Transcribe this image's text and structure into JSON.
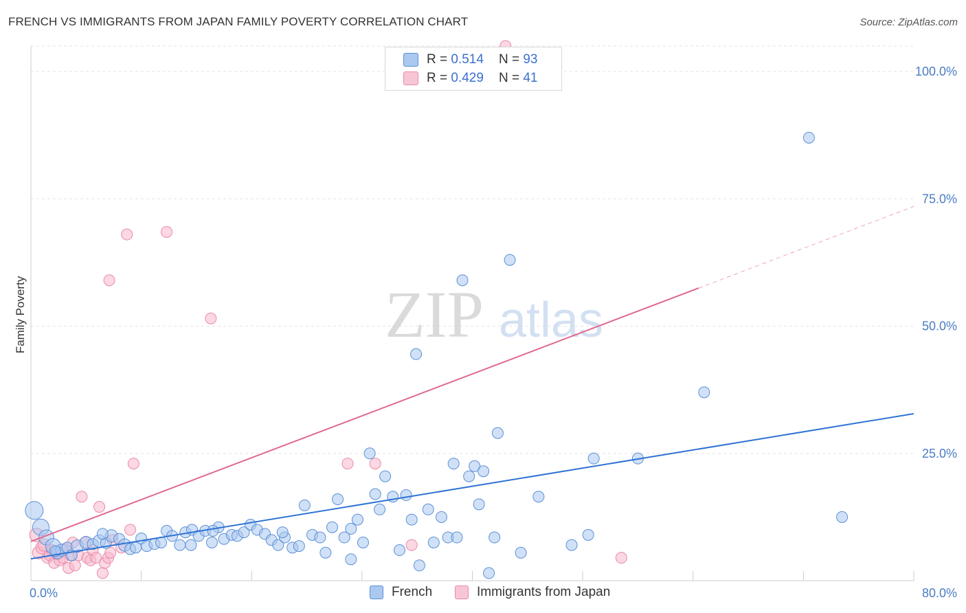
{
  "header": {
    "title": "FRENCH VS IMMIGRANTS FROM JAPAN FAMILY POVERTY CORRELATION CHART",
    "source": "Source: ZipAtlas.com"
  },
  "legend": {
    "rows": [
      {
        "r_label": "R =",
        "r_value": "0.514",
        "n_label": "N =",
        "n_value": "93"
      },
      {
        "r_label": "R =",
        "r_value": "0.429",
        "n_label": "N =",
        "n_value": "41"
      }
    ]
  },
  "bottom_legend": {
    "items": [
      {
        "label": "French"
      },
      {
        "label": "Immigrants from Japan"
      }
    ]
  },
  "colors": {
    "french_fill": "#aac8f0",
    "french_stroke": "#5b8fd6",
    "french_line": "#2f73d4",
    "japan_fill": "#f7b8cc",
    "japan_stroke": "#e88aa8",
    "japan_line": "#e0688f",
    "tick_text": "#4a7cc4",
    "grid": "#e3e3e3"
  },
  "chart_data": {
    "type": "scatter",
    "title": "FRENCH VS IMMIGRANTS FROM JAPAN FAMILY POVERTY CORRELATION CHART",
    "xlabel": "",
    "ylabel": "Family Poverty",
    "xlim": [
      0,
      80
    ],
    "ylim": [
      0,
      105
    ],
    "x_tick_labels": [
      "0.0%",
      "80.0%"
    ],
    "y_ticks": [
      25,
      50,
      75,
      100
    ],
    "y_tick_labels": [
      "25.0%",
      "50.0%",
      "75.0%",
      "100.0%"
    ],
    "watermark": {
      "zip": "ZIP",
      "atlas": "atlas"
    },
    "series": [
      {
        "name": "French",
        "r": 0.514,
        "n": 93,
        "trend": {
          "x0": 0,
          "y0": 4.3,
          "x1": 80,
          "y1": 32.8,
          "dash_from": null
        },
        "points": [
          [
            0.3,
            13.8,
            13
          ],
          [
            0.9,
            10.5,
            12
          ],
          [
            1.4,
            8.5,
            11
          ],
          [
            2.0,
            6.8,
            11
          ],
          [
            2.4,
            5.5,
            9
          ],
          [
            2.8,
            6.0,
            9
          ],
          [
            3.3,
            6.5,
            8
          ],
          [
            3.7,
            5.0,
            8
          ],
          [
            4.2,
            6.8,
            9
          ],
          [
            5.0,
            7.5,
            9
          ],
          [
            5.6,
            7.2,
            8
          ],
          [
            6.2,
            7.8,
            9
          ],
          [
            6.8,
            7.4,
            8
          ],
          [
            7.3,
            8.8,
            9
          ],
          [
            8.0,
            8.2,
            8
          ],
          [
            8.5,
            7.0,
            9
          ],
          [
            9.0,
            6.2,
            8
          ],
          [
            9.5,
            6.5,
            8
          ],
          [
            10.0,
            8.3,
            8
          ],
          [
            10.5,
            6.8,
            8
          ],
          [
            11.2,
            7.2,
            8
          ],
          [
            11.8,
            7.5,
            8
          ],
          [
            12.3,
            9.8,
            8
          ],
          [
            12.8,
            8.8,
            8
          ],
          [
            13.5,
            7.0,
            8
          ],
          [
            14.0,
            9.5,
            8
          ],
          [
            14.6,
            10.0,
            8
          ],
          [
            15.2,
            8.8,
            8
          ],
          [
            15.8,
            9.8,
            8
          ],
          [
            16.4,
            7.5,
            8
          ],
          [
            17.0,
            10.5,
            8
          ],
          [
            17.5,
            8.2,
            8
          ],
          [
            18.2,
            9.0,
            8
          ],
          [
            18.7,
            8.8,
            8
          ],
          [
            19.3,
            9.5,
            8
          ],
          [
            19.9,
            11.0,
            8
          ],
          [
            20.5,
            10.0,
            8
          ],
          [
            21.2,
            9.2,
            8
          ],
          [
            21.8,
            8.0,
            8
          ],
          [
            22.4,
            7.0,
            8
          ],
          [
            23.0,
            8.5,
            8
          ],
          [
            23.7,
            6.5,
            8
          ],
          [
            24.3,
            6.8,
            8
          ],
          [
            24.8,
            14.8,
            8
          ],
          [
            25.5,
            9.0,
            8
          ],
          [
            26.2,
            8.5,
            8
          ],
          [
            26.7,
            5.5,
            8
          ],
          [
            27.3,
            10.5,
            8
          ],
          [
            27.8,
            16.0,
            8
          ],
          [
            28.4,
            8.5,
            8
          ],
          [
            29.0,
            10.2,
            8
          ],
          [
            29.6,
            12.0,
            8
          ],
          [
            30.1,
            7.5,
            8
          ],
          [
            30.7,
            25.0,
            8
          ],
          [
            31.2,
            17.0,
            8
          ],
          [
            31.6,
            14.0,
            8
          ],
          [
            32.1,
            20.5,
            8
          ],
          [
            32.8,
            16.5,
            8
          ],
          [
            33.4,
            6.0,
            8
          ],
          [
            34.0,
            16.8,
            8
          ],
          [
            34.5,
            12.0,
            8
          ],
          [
            34.9,
            44.5,
            8
          ],
          [
            35.2,
            3.0,
            8
          ],
          [
            36.0,
            14.0,
            8
          ],
          [
            36.5,
            7.5,
            8
          ],
          [
            37.2,
            12.5,
            8
          ],
          [
            37.8,
            8.5,
            8
          ],
          [
            38.3,
            23.0,
            8
          ],
          [
            38.6,
            8.5,
            8
          ],
          [
            39.1,
            59.0,
            8
          ],
          [
            39.7,
            20.5,
            8
          ],
          [
            40.2,
            22.5,
            8
          ],
          [
            40.6,
            15.0,
            8
          ],
          [
            41.0,
            21.5,
            8
          ],
          [
            41.5,
            1.5,
            8
          ],
          [
            42.0,
            8.5,
            8
          ],
          [
            42.3,
            29.0,
            8
          ],
          [
            43.4,
            63.0,
            8
          ],
          [
            44.4,
            5.5,
            8
          ],
          [
            46.0,
            16.5,
            8
          ],
          [
            49.0,
            7.0,
            8
          ],
          [
            50.5,
            9.0,
            8
          ],
          [
            51.0,
            24.0,
            8
          ],
          [
            55.0,
            24.0,
            8
          ],
          [
            61.0,
            37.0,
            8
          ],
          [
            70.5,
            87.0,
            8
          ],
          [
            73.5,
            12.5,
            8
          ],
          [
            14.5,
            7.0,
            8
          ],
          [
            6.5,
            9.2,
            8
          ],
          [
            16.5,
            9.8,
            8
          ],
          [
            22.8,
            9.5,
            8
          ],
          [
            29.0,
            4.2,
            8
          ],
          [
            2.2,
            5.8,
            8
          ]
        ]
      },
      {
        "name": "Immigrants from Japan",
        "r": 0.429,
        "n": 41,
        "trend": {
          "x0": 0,
          "y0": 7.7,
          "x1": 80,
          "y1": 73.5,
          "dash_from": 60.5
        },
        "points": [
          [
            0.5,
            9.0,
            10
          ],
          [
            0.7,
            5.5,
            9
          ],
          [
            1.0,
            6.5,
            9
          ],
          [
            1.2,
            7.0,
            9
          ],
          [
            1.5,
            4.5,
            8
          ],
          [
            1.7,
            5.0,
            8
          ],
          [
            1.9,
            6.0,
            8
          ],
          [
            2.1,
            3.5,
            8
          ],
          [
            2.4,
            5.2,
            8
          ],
          [
            2.6,
            4.0,
            8
          ],
          [
            2.9,
            4.5,
            8
          ],
          [
            3.1,
            6.2,
            8
          ],
          [
            3.4,
            2.5,
            8
          ],
          [
            3.6,
            5.0,
            8
          ],
          [
            3.8,
            7.5,
            8
          ],
          [
            4.0,
            3.0,
            8
          ],
          [
            4.3,
            5.0,
            8
          ],
          [
            4.6,
            16.5,
            8
          ],
          [
            4.9,
            7.5,
            8
          ],
          [
            5.1,
            4.5,
            8
          ],
          [
            5.4,
            4.0,
            8
          ],
          [
            5.6,
            6.0,
            8
          ],
          [
            5.9,
            4.5,
            8
          ],
          [
            6.2,
            14.5,
            8
          ],
          [
            6.5,
            1.5,
            8
          ],
          [
            6.7,
            3.5,
            8
          ],
          [
            7.0,
            4.5,
            8
          ],
          [
            7.2,
            5.5,
            8
          ],
          [
            7.4,
            8.0,
            8
          ],
          [
            7.1,
            59.0,
            8
          ],
          [
            8.7,
            68.0,
            8
          ],
          [
            9.3,
            23.0,
            8
          ],
          [
            9.0,
            10.0,
            8
          ],
          [
            12.3,
            68.5,
            8
          ],
          [
            16.3,
            51.5,
            8
          ],
          [
            28.7,
            23.0,
            8
          ],
          [
            31.2,
            23.0,
            8
          ],
          [
            34.5,
            7.0,
            8
          ],
          [
            43.0,
            105.0,
            8
          ],
          [
            53.5,
            4.5,
            8
          ],
          [
            8.2,
            6.5,
            8
          ]
        ]
      }
    ]
  }
}
